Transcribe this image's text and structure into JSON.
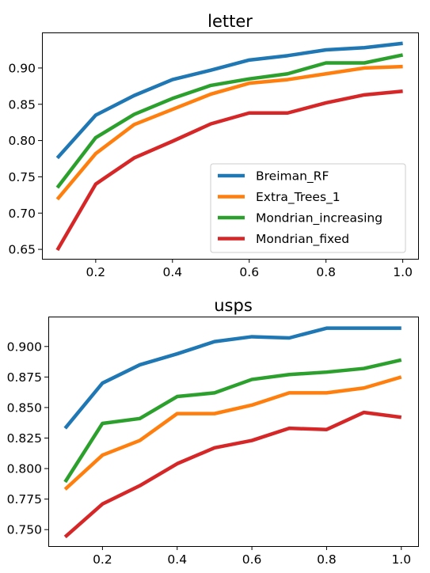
{
  "chart_data": [
    {
      "type": "line",
      "title": "letter",
      "xlabel": "",
      "ylabel": "",
      "x": [
        0.1,
        0.2,
        0.3,
        0.4,
        0.5,
        0.6,
        0.7,
        0.8,
        0.9,
        1.0
      ],
      "xticks": [
        "0.2",
        "0.4",
        "0.6",
        "0.8",
        "1.0"
      ],
      "yticks": [
        "0.65",
        "0.70",
        "0.75",
        "0.80",
        "0.85",
        "0.90"
      ],
      "xlim": [
        0.06,
        1.04
      ],
      "ylim": [
        0.637,
        0.949
      ],
      "legend": "lower-right",
      "series": [
        {
          "name": "Breiman_RF",
          "color": "#1f77b4",
          "values": [
            0.776,
            0.835,
            0.862,
            0.884,
            0.897,
            0.911,
            0.917,
            0.925,
            0.928,
            0.934
          ]
        },
        {
          "name": "Extra_Trees_1",
          "color": "#ff7f0e",
          "values": [
            0.719,
            0.782,
            0.822,
            0.843,
            0.864,
            0.879,
            0.884,
            0.892,
            0.9,
            0.902
          ]
        },
        {
          "name": "Mondrian_increasing",
          "color": "#2ca02c",
          "values": [
            0.735,
            0.804,
            0.836,
            0.858,
            0.876,
            0.885,
            0.892,
            0.907,
            0.907,
            0.918
          ]
        },
        {
          "name": "Mondrian_fixed",
          "color": "#d62728",
          "values": [
            0.649,
            0.74,
            0.776,
            0.799,
            0.823,
            0.838,
            0.838,
            0.852,
            0.863,
            0.868
          ]
        }
      ]
    },
    {
      "type": "line",
      "title": "usps",
      "xlabel": "",
      "ylabel": "",
      "x": [
        0.1,
        0.2,
        0.3,
        0.4,
        0.5,
        0.6,
        0.7,
        0.8,
        0.9,
        1.0
      ],
      "xticks": [
        "0.2",
        "0.4",
        "0.6",
        "0.8",
        "1.0"
      ],
      "yticks": [
        "0.750",
        "0.775",
        "0.800",
        "0.825",
        "0.850",
        "0.875",
        "0.900"
      ],
      "xlim": [
        0.055,
        1.045
      ],
      "ylim": [
        0.7365,
        0.9245
      ],
      "series": [
        {
          "name": "Breiman_RF",
          "color": "#1f77b4",
          "values": [
            0.833,
            0.87,
            0.885,
            0.894,
            0.904,
            0.908,
            0.907,
            0.915,
            0.915,
            0.915
          ]
        },
        {
          "name": "Extra_Trees_1",
          "color": "#ff7f0e",
          "values": [
            0.783,
            0.811,
            0.823,
            0.845,
            0.845,
            0.852,
            0.862,
            0.862,
            0.866,
            0.875
          ]
        },
        {
          "name": "Mondrian_increasing",
          "color": "#2ca02c",
          "values": [
            0.789,
            0.837,
            0.841,
            0.859,
            0.862,
            0.873,
            0.877,
            0.879,
            0.882,
            0.889
          ]
        },
        {
          "name": "Mondrian_fixed",
          "color": "#d62728",
          "values": [
            0.744,
            0.771,
            0.786,
            0.804,
            0.817,
            0.823,
            0.833,
            0.832,
            0.846,
            0.842
          ]
        }
      ]
    }
  ]
}
